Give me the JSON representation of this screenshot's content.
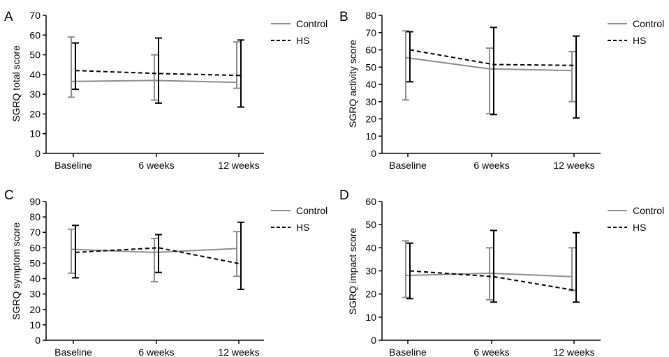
{
  "legend": {
    "control_label": "Control",
    "hs_label": "HS"
  },
  "colors": {
    "control": "#8c8c8c",
    "hs": "#000000"
  },
  "chart_data": [
    {
      "panel": "A",
      "type": "line",
      "categories": [
        "Baseline",
        "6 weeks",
        "12 weeks"
      ],
      "ylabel": "SGRQ total score",
      "ylim": [
        0,
        70
      ],
      "yticks": [
        0,
        10,
        20,
        30,
        40,
        50,
        60,
        70
      ],
      "series": [
        {
          "name": "Control",
          "values": [
            36.5,
            37,
            36
          ],
          "error_low": [
            28.5,
            27,
            33
          ],
          "error_high": [
            59,
            50,
            56.5
          ]
        },
        {
          "name": "HS",
          "values": [
            42,
            40.5,
            39.5
          ],
          "error_low": [
            32.5,
            25.5,
            23.5
          ],
          "error_high": [
            56,
            58.5,
            57.5
          ]
        }
      ],
      "grid": false,
      "legend_position": "top-right"
    },
    {
      "panel": "B",
      "type": "line",
      "categories": [
        "Baseline",
        "6 weeks",
        "12 weeks"
      ],
      "ylabel": "SGRQ activity score",
      "ylim": [
        0,
        80
      ],
      "yticks": [
        0,
        10,
        20,
        30,
        40,
        50,
        60,
        70,
        80
      ],
      "series": [
        {
          "name": "Control",
          "values": [
            55.5,
            49,
            48
          ],
          "error_low": [
            31,
            23,
            30
          ],
          "error_high": [
            71,
            61,
            59
          ]
        },
        {
          "name": "HS",
          "values": [
            60,
            51.5,
            51
          ],
          "error_low": [
            41.5,
            22.5,
            20.5
          ],
          "error_high": [
            70.5,
            73,
            68
          ]
        }
      ],
      "grid": false,
      "legend_position": "top-right"
    },
    {
      "panel": "C",
      "type": "line",
      "categories": [
        "Baseline",
        "6 weeks",
        "12 weeks"
      ],
      "ylabel": "SGRQ symptom score",
      "ylim": [
        0,
        90
      ],
      "yticks": [
        0,
        10,
        20,
        30,
        40,
        50,
        60,
        70,
        80,
        90
      ],
      "series": [
        {
          "name": "Control",
          "values": [
            59,
            57,
            59.5
          ],
          "error_low": [
            43.5,
            38,
            41.5
          ],
          "error_high": [
            72,
            66,
            70.5
          ]
        },
        {
          "name": "HS",
          "values": [
            57,
            60,
            49.5
          ],
          "error_low": [
            40.5,
            44,
            33
          ],
          "error_high": [
            74.5,
            68.5,
            76.5
          ]
        }
      ],
      "grid": false,
      "legend_position": "top-right"
    },
    {
      "panel": "D",
      "type": "line",
      "categories": [
        "Baseline",
        "6 weeks",
        "12 weeks"
      ],
      "ylabel": "SGRQ impact score",
      "ylim": [
        0,
        60
      ],
      "yticks": [
        0,
        10,
        20,
        30,
        40,
        50,
        60
      ],
      "series": [
        {
          "name": "Control",
          "values": [
            28,
            29,
            27.5
          ],
          "error_low": [
            18.5,
            17.5,
            21.5
          ],
          "error_high": [
            43,
            40,
            40
          ]
        },
        {
          "name": "HS",
          "values": [
            30,
            27.5,
            21.5
          ],
          "error_low": [
            18,
            16.5,
            16.5
          ],
          "error_high": [
            42,
            47.5,
            46.5
          ]
        }
      ],
      "grid": false,
      "legend_position": "top-right"
    }
  ]
}
